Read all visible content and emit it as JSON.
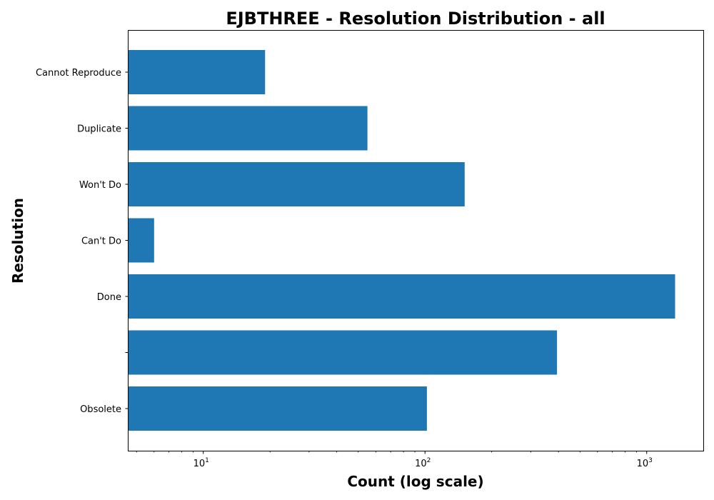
{
  "chart_data": {
    "type": "bar",
    "orientation": "horizontal",
    "title": "EJBTHREE - Resolution Distribution - all",
    "xlabel": "Count (log scale)",
    "ylabel": "Resolution",
    "xscale": "log",
    "xlim": [
      4.6,
      1800
    ],
    "x_ticks": [
      {
        "base": "10",
        "exp": "1",
        "value": 10
      },
      {
        "base": "10",
        "exp": "2",
        "value": 100
      },
      {
        "base": "10",
        "exp": "3",
        "value": 1000
      }
    ],
    "categories": [
      "Cannot Reproduce",
      "Duplicate",
      "Won't Do",
      "Can't Do",
      "Done",
      "",
      "Obsolete"
    ],
    "values": [
      19,
      55,
      151,
      6,
      1343,
      394,
      102
    ],
    "bar_color": "#1f77b4",
    "grid": false
  }
}
